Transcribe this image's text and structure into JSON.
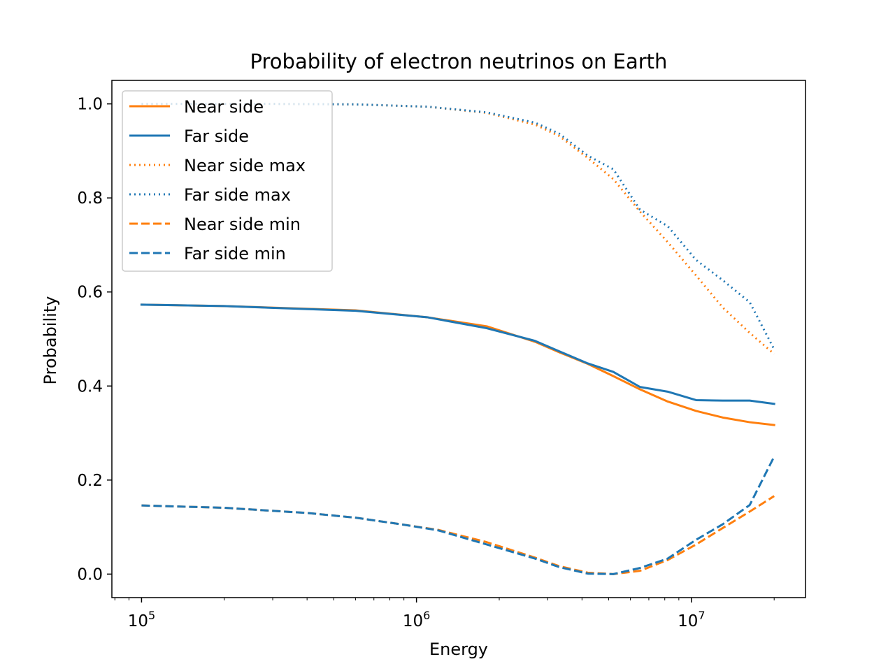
{
  "chart_data": {
    "type": "line",
    "title": "Probability of electron neutrinos on Earth",
    "xlabel": "Energy",
    "ylabel": "Probability",
    "xscale": "log",
    "xlim": [
      78000,
      26000000
    ],
    "ylim": [
      -0.05,
      1.05
    ],
    "grid": false,
    "legend_position": "top-left",
    "x_tick_labels": [
      {
        "value": 100000,
        "base": "10",
        "exp": "5"
      },
      {
        "value": 1000000,
        "base": "10",
        "exp": "6"
      },
      {
        "value": 10000000,
        "base": "10",
        "exp": "7"
      }
    ],
    "y_tick_labels": [
      {
        "value": 0.0,
        "label": "0.0"
      },
      {
        "value": 0.2,
        "label": "0.2"
      },
      {
        "value": 0.4,
        "label": "0.4"
      },
      {
        "value": 0.6,
        "label": "0.6"
      },
      {
        "value": 0.8,
        "label": "0.8"
      },
      {
        "value": 1.0,
        "label": "1.0"
      }
    ],
    "series": [
      {
        "name": "Near side",
        "color": "#ff7f0e",
        "style": "solid",
        "points": [
          [
            100000,
            0.573
          ],
          [
            200000,
            0.57
          ],
          [
            600000,
            0.561
          ],
          [
            1100000,
            0.546
          ],
          [
            1800000,
            0.527
          ],
          [
            2700000,
            0.494
          ],
          [
            3300000,
            0.472
          ],
          [
            4200000,
            0.447
          ],
          [
            5200000,
            0.421
          ],
          [
            6500000,
            0.393
          ],
          [
            8200000,
            0.367
          ],
          [
            10400000,
            0.347
          ],
          [
            13000000,
            0.333
          ],
          [
            16300000,
            0.323
          ],
          [
            20000000,
            0.317
          ]
        ]
      },
      {
        "name": "Far side",
        "color": "#1f77b4",
        "style": "solid",
        "points": [
          [
            100000,
            0.573
          ],
          [
            200000,
            0.57
          ],
          [
            600000,
            0.56
          ],
          [
            1100000,
            0.546
          ],
          [
            1800000,
            0.523
          ],
          [
            2700000,
            0.496
          ],
          [
            3300000,
            0.474
          ],
          [
            4200000,
            0.448
          ],
          [
            5200000,
            0.43
          ],
          [
            6500000,
            0.398
          ],
          [
            8200000,
            0.388
          ],
          [
            10400000,
            0.37
          ],
          [
            13000000,
            0.369
          ],
          [
            16300000,
            0.369
          ],
          [
            20000000,
            0.362
          ]
        ]
      },
      {
        "name": "Near side max",
        "color": "#ff7f0e",
        "style": "dotted",
        "points": [
          [
            100000,
            1.0
          ],
          [
            300000,
            1.0
          ],
          [
            600000,
            0.999
          ],
          [
            1100000,
            0.994
          ],
          [
            1800000,
            0.981
          ],
          [
            2700000,
            0.956
          ],
          [
            3300000,
            0.932
          ],
          [
            4200000,
            0.885
          ],
          [
            5200000,
            0.84
          ],
          [
            6500000,
            0.771
          ],
          [
            8200000,
            0.706
          ],
          [
            10400000,
            0.635
          ],
          [
            13000000,
            0.567
          ],
          [
            16300000,
            0.513
          ],
          [
            20000000,
            0.468
          ]
        ]
      },
      {
        "name": "Far side max",
        "color": "#1f77b4",
        "style": "dotted",
        "points": [
          [
            100000,
            1.0
          ],
          [
            300000,
            1.0
          ],
          [
            600000,
            0.999
          ],
          [
            1100000,
            0.994
          ],
          [
            1800000,
            0.982
          ],
          [
            2700000,
            0.96
          ],
          [
            3300000,
            0.937
          ],
          [
            4200000,
            0.89
          ],
          [
            5200000,
            0.861
          ],
          [
            6500000,
            0.775
          ],
          [
            8200000,
            0.74
          ],
          [
            10400000,
            0.668
          ],
          [
            13000000,
            0.625
          ],
          [
            16300000,
            0.578
          ],
          [
            20000000,
            0.478
          ]
        ]
      },
      {
        "name": "Near side min",
        "color": "#ff7f0e",
        "style": "dashed",
        "points": [
          [
            100000,
            0.146
          ],
          [
            200000,
            0.141
          ],
          [
            400000,
            0.13
          ],
          [
            600000,
            0.12
          ],
          [
            900000,
            0.105
          ],
          [
            1200000,
            0.094
          ],
          [
            1800000,
            0.068
          ],
          [
            2700000,
            0.035
          ],
          [
            3300000,
            0.017
          ],
          [
            4200000,
            0.003
          ],
          [
            5200000,
            0.0
          ],
          [
            6500000,
            0.007
          ],
          [
            8200000,
            0.03
          ],
          [
            10400000,
            0.063
          ],
          [
            13000000,
            0.098
          ],
          [
            16300000,
            0.133
          ],
          [
            20000000,
            0.166
          ]
        ]
      },
      {
        "name": "Far side min",
        "color": "#1f77b4",
        "style": "dashed",
        "points": [
          [
            100000,
            0.146
          ],
          [
            200000,
            0.141
          ],
          [
            400000,
            0.13
          ],
          [
            600000,
            0.12
          ],
          [
            900000,
            0.105
          ],
          [
            1200000,
            0.093
          ],
          [
            1800000,
            0.063
          ],
          [
            2700000,
            0.033
          ],
          [
            3300000,
            0.015
          ],
          [
            4200000,
            0.001
          ],
          [
            5200000,
            0.0
          ],
          [
            6500000,
            0.013
          ],
          [
            8200000,
            0.033
          ],
          [
            10400000,
            0.073
          ],
          [
            13000000,
            0.106
          ],
          [
            16300000,
            0.147
          ],
          [
            20000000,
            0.25
          ]
        ]
      }
    ]
  }
}
